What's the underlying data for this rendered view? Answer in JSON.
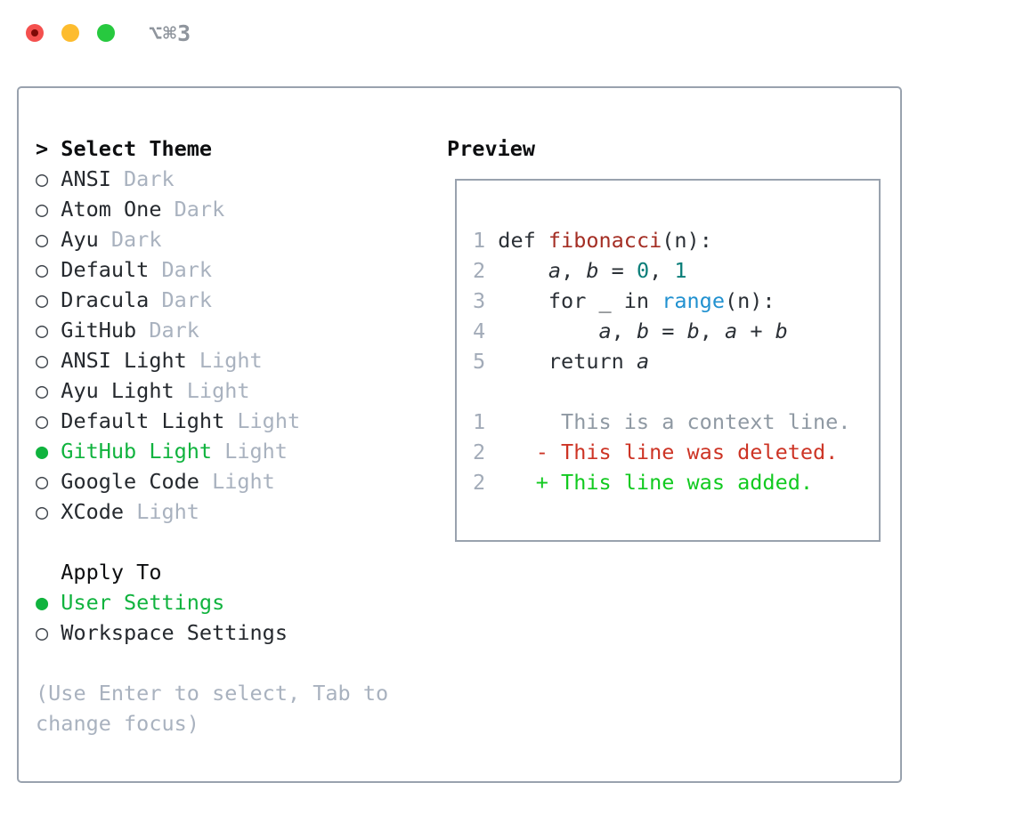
{
  "window": {
    "shortcut": "⌥⌘3",
    "traffic_lights": [
      "close",
      "minimize",
      "zoom"
    ]
  },
  "theme_picker": {
    "prompt": ">",
    "title": "Select Theme",
    "items": [
      {
        "name": "ANSI",
        "variant": "Dark",
        "selected": false
      },
      {
        "name": "Atom One",
        "variant": "Dark",
        "selected": false
      },
      {
        "name": "Ayu",
        "variant": "Dark",
        "selected": false
      },
      {
        "name": "Default",
        "variant": "Dark",
        "selected": false
      },
      {
        "name": "Dracula",
        "variant": "Dark",
        "selected": false
      },
      {
        "name": "GitHub",
        "variant": "Dark",
        "selected": false
      },
      {
        "name": "ANSI Light",
        "variant": "Light",
        "selected": false
      },
      {
        "name": "Ayu Light",
        "variant": "Light",
        "selected": false
      },
      {
        "name": "Default Light",
        "variant": "Light",
        "selected": false
      },
      {
        "name": "GitHub Light",
        "variant": "Light",
        "selected": true
      },
      {
        "name": "Google Code",
        "variant": "Light",
        "selected": false
      },
      {
        "name": "XCode",
        "variant": "Light",
        "selected": false
      }
    ],
    "radio_unselected_icon": "○",
    "radio_selected_icon": "●",
    "apply_to": {
      "title": "Apply To",
      "options": [
        {
          "name": "User Settings",
          "selected": true
        },
        {
          "name": "Workspace Settings",
          "selected": false
        }
      ]
    },
    "help_lines": [
      "(Use Enter to select, Tab to",
      "change focus)"
    ]
  },
  "preview": {
    "title": "Preview",
    "lines": [
      {
        "segs": [
          [
            "1",
            "ln"
          ],
          [
            " def ",
            "body"
          ],
          [
            "fibonacci",
            "fn"
          ],
          [
            "(n):",
            "body"
          ]
        ]
      },
      {
        "segs": [
          [
            "2",
            "ln"
          ],
          [
            "     ",
            "body"
          ],
          [
            "a",
            "var"
          ],
          [
            ", ",
            "body"
          ],
          [
            "b",
            "var"
          ],
          [
            " = ",
            "body"
          ],
          [
            "0",
            "num"
          ],
          [
            ", ",
            "body"
          ],
          [
            "1",
            "num"
          ]
        ]
      },
      {
        "segs": [
          [
            "3",
            "ln"
          ],
          [
            "     for _ in ",
            "body"
          ],
          [
            "range",
            "call"
          ],
          [
            "(n):",
            "body"
          ]
        ]
      },
      {
        "segs": [
          [
            "4",
            "ln"
          ],
          [
            "         ",
            "body"
          ],
          [
            "a",
            "var"
          ],
          [
            ", ",
            "body"
          ],
          [
            "b",
            "var"
          ],
          [
            " = ",
            "body"
          ],
          [
            "b",
            "var"
          ],
          [
            ", ",
            "body"
          ],
          [
            "a",
            "var"
          ],
          [
            " + ",
            "body"
          ],
          [
            "b",
            "var"
          ]
        ]
      },
      {
        "segs": [
          [
            "5",
            "ln"
          ],
          [
            "     return ",
            "body"
          ],
          [
            "a",
            "var"
          ]
        ]
      },
      {
        "segs": []
      },
      {
        "segs": [
          [
            "1",
            "ln"
          ],
          [
            "      ",
            "body"
          ],
          [
            "This is a context line.",
            "ctx"
          ]
        ]
      },
      {
        "segs": [
          [
            "2",
            "ln"
          ],
          [
            "    ",
            "body"
          ],
          [
            "- This line was deleted.",
            "del"
          ]
        ]
      },
      {
        "segs": [
          [
            "2",
            "ln"
          ],
          [
            "    ",
            "body"
          ],
          [
            "+ This line was added.",
            "add"
          ]
        ]
      }
    ]
  },
  "colors": {
    "accent-green": "#10b33e",
    "added-green": "#12ca20",
    "deleted-red": "#cd3425",
    "func-red": "#a42e24",
    "number-teal": "#0b7e79",
    "call-blue": "#2191d0",
    "code-body": "#2b3036",
    "line-number": "#a2abb8",
    "context-gray": "#8f99a3",
    "label-dark": "#25292e",
    "muted-gray": "#a9b2bf",
    "heading-black": "#0d0e10",
    "border-gray": "#99a2ae",
    "shortcut-gray": "#8f959d",
    "light-red": "#f4504e",
    "light-red-dot": "#7d0a06",
    "light-yellow": "#fdbc2e",
    "light-green": "#27c93f"
  }
}
